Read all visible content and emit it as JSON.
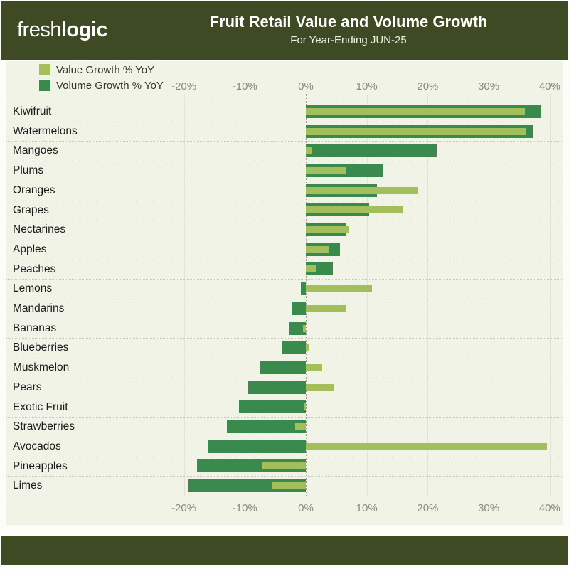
{
  "header": {
    "logo_prefix": "fresh",
    "logo_suffix": "logic",
    "title": "Fruit Retail Value and Volume Growth",
    "subtitle": "For Year-Ending JUN-25"
  },
  "legend": {
    "items": [
      {
        "label": "Value Growth % YoY",
        "color": "#a2bf5b"
      },
      {
        "label": "Volume Growth % YoY",
        "color": "#3a8a4d"
      }
    ]
  },
  "axis": {
    "tick_values": [
      -20,
      -10,
      0,
      10,
      20,
      30,
      40
    ],
    "tick_labels": [
      "-20%",
      "-10%",
      "0%",
      "10%",
      "20%",
      "30%",
      "40%"
    ],
    "min": -20,
    "max": 40
  },
  "chart_data": {
    "type": "bar",
    "orientation": "horizontal",
    "title": "Fruit Retail Value and Volume Growth",
    "subtitle": "For Year-Ending JUN-25",
    "unit": "%",
    "xlim": [
      -20,
      40
    ],
    "grid": true,
    "legend_position": "top-left",
    "sort": "descending by Volume Growth",
    "categories": [
      "Kiwifruit",
      "Watermelons",
      "Mangoes",
      "Plums",
      "Oranges",
      "Grapes",
      "Nectarines",
      "Apples",
      "Peaches",
      "Lemons",
      "Mandarins",
      "Bananas",
      "Blueberries",
      "Muskmelon",
      "Pears",
      "Exotic Fruit",
      "Strawberries",
      "Avocados",
      "Pineapples",
      "Limes"
    ],
    "series": [
      {
        "name": "Value Growth % YoY",
        "color": "#a2bf5b",
        "values": [
          35.9,
          36.1,
          1.0,
          6.5,
          18.3,
          16.0,
          7.1,
          3.7,
          1.6,
          10.8,
          6.7,
          -0.5,
          0.6,
          2.7,
          4.7,
          -0.3,
          -1.8,
          39.6,
          -7.2,
          -5.6
        ]
      },
      {
        "name": "Volume Growth % YoY",
        "color": "#3a8a4d",
        "values": [
          38.6,
          37.3,
          21.5,
          12.7,
          11.7,
          10.4,
          6.6,
          5.6,
          4.4,
          -0.8,
          -2.3,
          -2.7,
          -4.0,
          -7.5,
          -9.4,
          -11.0,
          -13.0,
          -16.1,
          -17.9,
          -19.3
        ]
      }
    ]
  },
  "colors": {
    "header_bg": "#3d4a24",
    "footer_bg": "#3d4a24",
    "panel_bg": "#f1f3e7",
    "page_bg": "#fcfcf8",
    "value_green": "#a2bf5b",
    "volume_green": "#3a8a4d",
    "axis_text": "#8a8a85",
    "label_text": "#1b1b1b",
    "grid_line": "#e2e4d8",
    "zero_line": "#9fa194",
    "separator": "#c6c8bd"
  }
}
